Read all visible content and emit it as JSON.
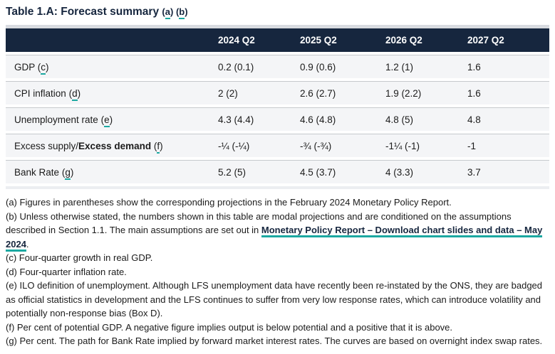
{
  "title": {
    "text": "Table 1.A: Forecast summary",
    "note_a": "a",
    "note_b": "b"
  },
  "table": {
    "columns": [
      "2024 Q2",
      "2025 Q2",
      "2026 Q2",
      "2027 Q2"
    ],
    "rows": [
      {
        "label": "GDP",
        "label_bold": "",
        "note": "c",
        "values": [
          "0.2 (0.1)",
          "0.9 (0.6)",
          "1.2 (1)",
          "1.6"
        ]
      },
      {
        "label": "CPI inflation",
        "label_bold": "",
        "note": "d",
        "values": [
          "2 (2)",
          "2.6 (2.7)",
          "1.9 (2.2)",
          "1.6"
        ]
      },
      {
        "label": "Unemployment rate",
        "label_bold": "",
        "note": "e",
        "values": [
          "4.3 (4.4)",
          "4.6 (4.8)",
          "4.8 (5)",
          "4.8"
        ]
      },
      {
        "label": "Excess supply/",
        "label_bold": "Excess demand",
        "note": "f",
        "values": [
          "-¼ (-¼)",
          "-¾ (-¾)",
          "-1¼ (-1)",
          "-1"
        ]
      },
      {
        "label": "Bank Rate",
        "label_bold": "",
        "note": "g",
        "values": [
          "5.2 (5)",
          "4.5 (3.7)",
          "4 (3.3)",
          "3.7"
        ]
      }
    ]
  },
  "footnotes": {
    "a": "(a) Figures in parentheses show the corresponding projections in the February 2024 Monetary Policy Report.",
    "b_before": "(b) Unless otherwise stated, the numbers shown in this table are modal projections and are conditioned on the assumptions described in Section 1.1. The main assumptions are set out in ",
    "b_link": "Monetary Policy Report – Download chart slides and data – May 2024",
    "b_after": ".",
    "c": "(c) Four-quarter growth in real GDP.",
    "d": "(d) Four-quarter inflation rate.",
    "e": "(e) ILO definition of unemployment. Although LFS unemployment data have recently been re-instated by the ONS, they are badged as official statistics in development and the LFS continues to suffer from very low response rates, which can introduce volatility and potentially non-response bias (Box D).",
    "f": "(f) Per cent of potential GDP. A negative figure implies output is below potential and a positive that it is above.",
    "g": "(g) Per cent. The path for Bank Rate implied by forward market interest rates. The curves are based on overnight index swap rates."
  },
  "colors": {
    "header_navy": "#16263e",
    "link_teal": "#1ba8a1",
    "row_background": "#f4f5f7",
    "top_strip": "#d8dbe0",
    "bottom_strip": "#eceef1"
  }
}
